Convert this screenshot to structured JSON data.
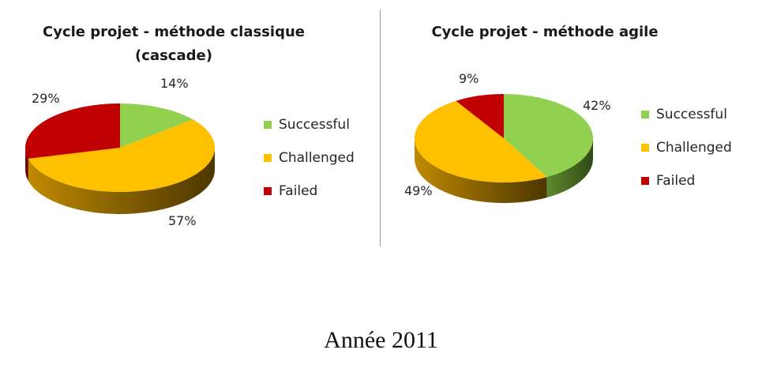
{
  "footer": "Année 2011",
  "colors": {
    "successful": "#92d050",
    "challenged": "#ffc000",
    "failed": "#c00000"
  },
  "chart_data": [
    {
      "type": "pie",
      "title_line1": "Cycle projet - méthode classique",
      "title_line2": "(cascade)",
      "legend": [
        "Successful",
        "Challenged",
        "Failed"
      ],
      "slices": [
        {
          "label": "Successful",
          "value": 14,
          "display": "14%"
        },
        {
          "label": "Challenged",
          "value": 57,
          "display": "57%"
        },
        {
          "label": "Failed",
          "value": 29,
          "display": "29%"
        }
      ]
    },
    {
      "type": "pie",
      "title_line1": "Cycle projet - méthode agile",
      "legend": [
        "Successful",
        "Challenged",
        "Failed"
      ],
      "slices": [
        {
          "label": "Successful",
          "value": 42,
          "display": "42%"
        },
        {
          "label": "Challenged",
          "value": 49,
          "display": "49%"
        },
        {
          "label": "Failed",
          "value": 9,
          "display": "9%"
        }
      ]
    }
  ]
}
